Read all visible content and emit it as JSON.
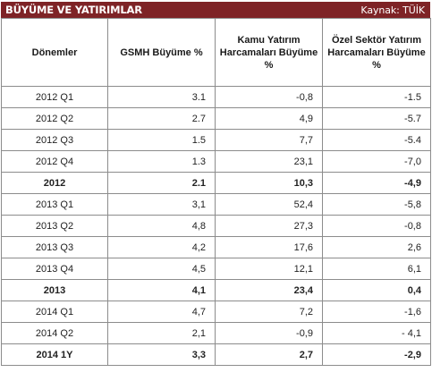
{
  "header": {
    "title": "BÜYÜME VE YATIRIMLAR",
    "source": "Kaynak: TÜİK"
  },
  "columns": [
    "Dönemler",
    "GSMH Büyüme %",
    "Kamu Yatırım Harcamaları Büyüme %",
    "Özel Sektör Yatırım Harcamaları Büyüme %"
  ],
  "rows": [
    {
      "period": "2012 Q1",
      "gsmh": "3.1",
      "kamu": "-0,8",
      "ozel": "-1.5",
      "bold": false
    },
    {
      "period": "2012 Q2",
      "gsmh": "2.7",
      "kamu": "4,9",
      "ozel": "-5.7",
      "bold": false
    },
    {
      "period": "2012 Q3",
      "gsmh": "1.5",
      "kamu": "7,7",
      "ozel": "-5.4",
      "bold": false
    },
    {
      "period": "2012 Q4",
      "gsmh": "1.3",
      "kamu": "23,1",
      "ozel": "-7,0",
      "bold": false
    },
    {
      "period": "2012",
      "gsmh": "2.1",
      "kamu": "10,3",
      "ozel": "-4,9",
      "bold": true
    },
    {
      "period": "2013 Q1",
      "gsmh": "3,1",
      "kamu": "52,4",
      "ozel": "-5,8",
      "bold": false
    },
    {
      "period": "2013 Q2",
      "gsmh": "4,8",
      "kamu": "27,3",
      "ozel": "-0,8",
      "bold": false
    },
    {
      "period": "2013 Q3",
      "gsmh": "4,2",
      "kamu": "17,6",
      "ozel": "2,6",
      "bold": false
    },
    {
      "period": "2013 Q4",
      "gsmh": "4,5",
      "kamu": "12,1",
      "ozel": "6,1",
      "bold": false
    },
    {
      "period": "2013",
      "gsmh": "4,1",
      "kamu": "23,4",
      "ozel": "0,4",
      "bold": true
    },
    {
      "period": "2014 Q1",
      "gsmh": "4,7",
      "kamu": "7,2",
      "ozel": "-1,6",
      "bold": false
    },
    {
      "period": "2014 Q2",
      "gsmh": "2,1",
      "kamu": "-0,9",
      "ozel": "- 4,1",
      "bold": false
    },
    {
      "period": "2014 1Y",
      "gsmh": "3,3",
      "kamu": "2,7",
      "ozel": "-2,9",
      "bold": true
    }
  ],
  "colors": {
    "title_bar": "#7e2326",
    "title_text": "#ffffff",
    "grid": "#8c8c8c"
  }
}
